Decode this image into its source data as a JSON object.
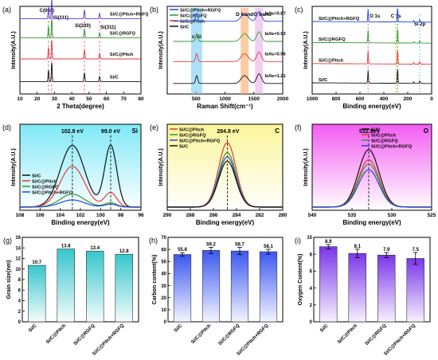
{
  "chart_data": [
    {
      "panel": "(a)",
      "type": "line",
      "xlabel": "2 Theta(degree)",
      "ylabel": "Intensity(A.U.)",
      "xlim": [
        10,
        80
      ],
      "xticks": [
        10,
        20,
        30,
        40,
        50,
        60,
        70,
        80
      ],
      "series": [
        {
          "name": "Si/C@Pitch+RGFQ",
          "color": "#5b3fd6",
          "baseline": 0.86
        },
        {
          "name": "Si/C@RGFQ",
          "color": "#2e9a2e",
          "baseline": 0.64
        },
        {
          "name": "Si/C@Pitch",
          "color": "#e53935",
          "baseline": 0.4
        },
        {
          "name": "Si/C",
          "color": "#111111",
          "baseline": 0.14
        }
      ],
      "peaks": [
        {
          "x": 26.5,
          "label": "C(002)",
          "color": "#888888"
        },
        {
          "x": 28.4,
          "label": "Si(111)",
          "color": "#ff3fbf"
        },
        {
          "x": 47.3,
          "label": "Si(220)",
          "color": "#ff3fbf"
        },
        {
          "x": 56.1,
          "label": "Si(311)",
          "color": "#ff3fbf"
        }
      ]
    },
    {
      "panel": "(b)",
      "type": "line",
      "xlabel": "Raman Shift(cm⁻¹)",
      "ylabel": "Intensity(A.U.)",
      "xlim": [
        0,
        2000
      ],
      "xticks": [
        500,
        1000,
        1500,
        2000
      ],
      "bands": [
        {
          "label": "c-Si",
          "x": 510,
          "color": "#6ec6f5"
        },
        {
          "label": "D band",
          "x": 1340,
          "color": "#f5a35c"
        },
        {
          "label": "G band",
          "x": 1590,
          "color": "#e6a8e6"
        }
      ],
      "series": [
        {
          "name": "Si/C@Pitch+RGFQ",
          "color": "#2244dd",
          "ratio": "Iᴅ/Iɢ=0.87",
          "baseline": 0.83
        },
        {
          "name": "Si/C@RGFQ",
          "color": "#2e9a2e",
          "ratio": "Iᴅ/Iɢ=0.93",
          "baseline": 0.6
        },
        {
          "name": "Si/C@Pitch",
          "color": "#e53935",
          "ratio": "Iᴅ/Iɢ=0.96",
          "baseline": 0.37
        },
        {
          "name": "Si/C",
          "color": "#111111",
          "ratio": "Iᴅ/Iɢ=1.21",
          "baseline": 0.12
        }
      ]
    },
    {
      "panel": "(c)",
      "type": "line",
      "xlabel": "Binding energy(eV)",
      "ylabel": "Intensity(A.U.)",
      "xlim": [
        1000,
        0
      ],
      "xticks": [
        1000,
        800,
        600,
        400,
        200,
        0
      ],
      "peak_labels": [
        {
          "label": "O 1s",
          "x": 532
        },
        {
          "label": "C 1s",
          "x": 285
        },
        {
          "label": "Si 2p",
          "x": 100
        }
      ],
      "series": [
        {
          "name": "Si/C@Pitch+RGFQ",
          "color": "#2244dd",
          "baseline": 0.82
        },
        {
          "name": "Si/C@RGFQ",
          "color": "#2e9a2e",
          "baseline": 0.58
        },
        {
          "name": "Si/C@Pitch",
          "color": "#e53935",
          "baseline": 0.34
        },
        {
          "name": "Si/C",
          "color": "#111111",
          "baseline": 0.12
        }
      ]
    },
    {
      "panel": "(d)",
      "type": "line",
      "xlabel": "Binding energy(eV)",
      "ylabel": "Intensity(A.U.)",
      "element": "Si",
      "xlim": [
        108,
        96
      ],
      "xticks": [
        108,
        106,
        104,
        102,
        100,
        98,
        96
      ],
      "peak_labels": [
        "102.8 eV",
        "99.0 eV"
      ],
      "peak_positions": [
        102.8,
        99.0
      ],
      "series": [
        {
          "name": "Si/C",
          "color": "#111111",
          "amps": [
            0.86,
            0.86
          ]
        },
        {
          "name": "Si/C@Pitch",
          "color": "#e53935",
          "amps": [
            0.57,
            0.2
          ]
        },
        {
          "name": "Si/C@RGFQ",
          "color": "#2e9a2e",
          "amps": [
            0.18,
            0.06
          ]
        },
        {
          "name": "Si/C@Pitch+RGFQ",
          "color": "#2244dd",
          "amps": [
            0.1,
            0.04
          ]
        }
      ]
    },
    {
      "panel": "(e)",
      "type": "line",
      "xlabel": "Binding energy(eV)",
      "ylabel": "Intensity(A.U.)",
      "element": "C",
      "xlim": [
        290,
        280
      ],
      "xticks": [
        290,
        288,
        286,
        284,
        282,
        280
      ],
      "peak_label": "284.8 eV",
      "peak_position": 284.8,
      "series": [
        {
          "name": "Si/C@Pitch",
          "color": "#e53935",
          "amp": 0.9
        },
        {
          "name": "Si/C@RGFQ",
          "color": "#2e9a2e",
          "amp": 0.76
        },
        {
          "name": "Si/C@Pitch+RGFQ",
          "color": "#2244dd",
          "amp": 0.7
        },
        {
          "name": "Si/C",
          "color": "#111111",
          "amp": 0.64
        }
      ]
    },
    {
      "panel": "(f)",
      "type": "line",
      "xlabel": "Binding energy(eV)",
      "ylabel": "Intensity(A.U.)",
      "element": "O",
      "xlim": [
        540,
        525
      ],
      "xticks": [
        540,
        535,
        530,
        525
      ],
      "peak_label": "532.9eV",
      "peak_position": 532.9,
      "series": [
        {
          "name": "Si/C",
          "color": "#111111",
          "amp": 0.8
        },
        {
          "name": "Si/C@Pitch",
          "color": "#e53935",
          "amp": 0.66
        },
        {
          "name": "Si/C@RGFQ",
          "color": "#2e9a2e",
          "amp": 0.6
        },
        {
          "name": "Si/C@Pitch+RGFQ",
          "color": "#2244dd",
          "amp": 0.52
        }
      ]
    },
    {
      "panel": "(g)",
      "type": "bar",
      "ylabel": "Grain size(nm)",
      "categories": [
        "Si/C",
        "Si/C@Pitch",
        "Si/C@RGFQ",
        "Si/C@Pitch+RGFQ"
      ],
      "values": [
        10.7,
        13.8,
        13.4,
        12.8
      ],
      "labels": [
        "10.7",
        "13.8",
        "13.4",
        "12.8"
      ],
      "ylim": [
        0,
        16
      ],
      "yticks": [
        0,
        2,
        4,
        6,
        8,
        10,
        12,
        14,
        16
      ],
      "color_top": "#35c6cc",
      "color_bottom": "#f6fcfc"
    },
    {
      "panel": "(h)",
      "type": "bar",
      "ylabel": "Carbon content(%)",
      "categories": [
        "Si/C",
        "Si/C@Pitch",
        "Si/C@RGFQ",
        "Si/C@Pitch+RGFQ"
      ],
      "values": [
        55.8,
        59.2,
        58.7,
        58.1
      ],
      "errors": [
        1.5,
        2.6,
        3.0,
        2.0
      ],
      "labels": [
        "55.8",
        "59.2",
        "58.7",
        "58.1"
      ],
      "ylim": [
        0,
        70
      ],
      "yticks": [
        0,
        10,
        20,
        30,
        40,
        50,
        60,
        70
      ],
      "color_top": "#3b57f0",
      "color_bottom": "#f3f5ff"
    },
    {
      "panel": "(i)",
      "type": "bar",
      "ylabel": "Oxygen Content(%)",
      "categories": [
        "Si/C",
        "Si/C@Pitch",
        "Si/C@RGFQ",
        "Si/C@Pitch+RGFQ"
      ],
      "values": [
        8.9,
        8.1,
        7.9,
        7.5
      ],
      "errors": [
        0.25,
        0.5,
        0.3,
        0.7
      ],
      "labels": [
        "8.9",
        "8.1",
        "7.9",
        "7.5"
      ],
      "ylim": [
        0,
        10
      ],
      "yticks": [
        0,
        2,
        4,
        6,
        8,
        10
      ],
      "color_top": "#7a35e8",
      "color_bottom": "#f7f1ff"
    }
  ]
}
